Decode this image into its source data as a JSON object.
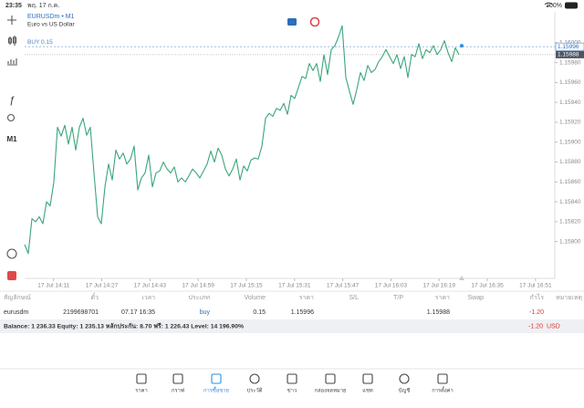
{
  "status_bar": {
    "time": "23:35",
    "date": "พฤ. 17 ก.ค.",
    "battery": "100%"
  },
  "toolbar": {
    "timeframe": "M1"
  },
  "chart_data": {
    "type": "line",
    "symbol": "EURUSDm • M1",
    "description": "Euro vs US Dollar",
    "order_label": "BUY 0.15",
    "buy_price": 1.15996,
    "bid": 1.15988,
    "color": "#3aa57a",
    "ylim": [
      1.15763,
      1.16031
    ],
    "yticks": [
      {
        "value": 1.16,
        "label": "1.16000"
      },
      {
        "value": 1.1598,
        "label": "1.15980"
      },
      {
        "value": 1.1596,
        "label": "1.15960"
      },
      {
        "value": 1.1594,
        "label": "1.15940"
      },
      {
        "value": 1.1592,
        "label": "1.15920"
      },
      {
        "value": 1.159,
        "label": "1.15900"
      },
      {
        "value": 1.1588,
        "label": "1.15880"
      },
      {
        "value": 1.1586,
        "label": "1.15860"
      },
      {
        "value": 1.1584,
        "label": "1.15840"
      },
      {
        "value": 1.1582,
        "label": "1.15820"
      },
      {
        "value": 1.158,
        "label": "1.15800"
      }
    ],
    "xticks": [
      "17 Jul 14:11",
      "17 Jul 14:27",
      "17 Jul 14:43",
      "17 Jul 14:59",
      "17 Jul 15:15",
      "17 Jul 15:31",
      "17 Jul 15:47",
      "17 Jul 16:03",
      "17 Jul 16:19",
      "17 Jul 16:35",
      "17 Jul 16:51"
    ],
    "values": [
      1.15797,
      1.15788,
      1.15823,
      1.1582,
      1.15825,
      1.15818,
      1.1584,
      1.15836,
      1.1586,
      1.15915,
      1.15906,
      1.15917,
      1.15898,
      1.15915,
      1.15892,
      1.15915,
      1.15924,
      1.15907,
      1.15915,
      1.15869,
      1.15825,
      1.15818,
      1.15855,
      1.15878,
      1.15862,
      1.15892,
      1.15883,
      1.15889,
      1.15878,
      1.15883,
      1.15896,
      1.15852,
      1.15864,
      1.15869,
      1.15887,
      1.15855,
      1.15869,
      1.15871,
      1.1588,
      1.15873,
      1.15869,
      1.15875,
      1.1586,
      1.15864,
      1.1586,
      1.15866,
      1.15873,
      1.15869,
      1.15864,
      1.15871,
      1.15878,
      1.15891,
      1.1588,
      1.15894,
      1.15887,
      1.15873,
      1.15866,
      1.15873,
      1.15883,
      1.15862,
      1.15876,
      1.15871,
      1.15882,
      1.15884,
      1.15883,
      1.15896,
      1.15924,
      1.15929,
      1.15926,
      1.15934,
      1.15932,
      1.15939,
      1.15928,
      1.15947,
      1.15944,
      1.15955,
      1.15966,
      1.15964,
      1.15979,
      1.15972,
      1.15979,
      1.15961,
      1.15988,
      1.15968,
      1.15993,
      1.15997,
      1.16006,
      1.16017,
      1.15965,
      1.15951,
      1.15938,
      1.15953,
      1.1597,
      1.15962,
      1.15977,
      1.1597,
      1.15973,
      1.15981,
      1.15986,
      1.15993,
      1.15986,
      1.15979,
      1.15988,
      1.15974,
      1.15986,
      1.15965,
      1.15988,
      1.15986,
      1.15999,
      1.15984,
      1.15993,
      1.1599,
      1.15997,
      1.15988,
      1.15993,
      1.16002,
      1.1599,
      1.15981,
      1.15995,
      1.15988
    ]
  },
  "table": {
    "headers": [
      "สัญลักษณ์",
      "ตั๋ว",
      "เวลา",
      "ประเภท",
      "Volume",
      "ราคา",
      "S/L",
      "T/P",
      "ราคา",
      "Swap",
      "กำไร",
      "หมายเหตุ"
    ],
    "rows": [
      {
        "symbol": "eurusdm",
        "ticket": "2199698701",
        "time": "07.17 16:35",
        "type": "buy",
        "volume": "0.15",
        "open_price": "1.15996",
        "current_price": "1.15988",
        "profit": "-1.20"
      }
    ],
    "summary": {
      "text": "Balance: 1 236.33 Equity: 1 235.13 หลักประกัน: 8.70 ฟรี: 1 226.43 Level: 14 196.90%",
      "profit": "-1.20",
      "currency": "USD"
    }
  },
  "tabs": [
    "ราคา",
    "กราฟ",
    "การซื้อขาย",
    "ประวัติ",
    "ข่าว",
    "กล่องจดหมาย",
    "แชท",
    "บัญชี",
    "การตั้งค่า"
  ]
}
